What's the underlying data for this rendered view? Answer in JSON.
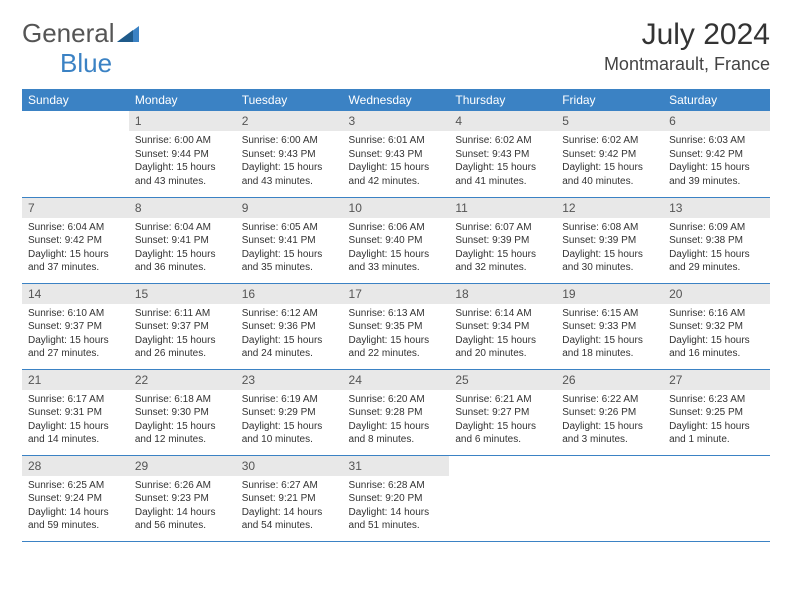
{
  "logo": {
    "part1": "General",
    "part2": "Blue"
  },
  "title": "July 2024",
  "location": "Montmarault, France",
  "colors": {
    "header_bg": "#3b82c4",
    "header_text": "#ffffff",
    "daynum_bg": "#e8e8e8",
    "border": "#3b82c4",
    "text": "#333333"
  },
  "weekdays": [
    "Sunday",
    "Monday",
    "Tuesday",
    "Wednesday",
    "Thursday",
    "Friday",
    "Saturday"
  ],
  "weeks": [
    [
      {
        "n": "",
        "sr": "",
        "ss": "",
        "dl": ""
      },
      {
        "n": "1",
        "sr": "Sunrise: 6:00 AM",
        "ss": "Sunset: 9:44 PM",
        "dl": "Daylight: 15 hours and 43 minutes."
      },
      {
        "n": "2",
        "sr": "Sunrise: 6:00 AM",
        "ss": "Sunset: 9:43 PM",
        "dl": "Daylight: 15 hours and 43 minutes."
      },
      {
        "n": "3",
        "sr": "Sunrise: 6:01 AM",
        "ss": "Sunset: 9:43 PM",
        "dl": "Daylight: 15 hours and 42 minutes."
      },
      {
        "n": "4",
        "sr": "Sunrise: 6:02 AM",
        "ss": "Sunset: 9:43 PM",
        "dl": "Daylight: 15 hours and 41 minutes."
      },
      {
        "n": "5",
        "sr": "Sunrise: 6:02 AM",
        "ss": "Sunset: 9:42 PM",
        "dl": "Daylight: 15 hours and 40 minutes."
      },
      {
        "n": "6",
        "sr": "Sunrise: 6:03 AM",
        "ss": "Sunset: 9:42 PM",
        "dl": "Daylight: 15 hours and 39 minutes."
      }
    ],
    [
      {
        "n": "7",
        "sr": "Sunrise: 6:04 AM",
        "ss": "Sunset: 9:42 PM",
        "dl": "Daylight: 15 hours and 37 minutes."
      },
      {
        "n": "8",
        "sr": "Sunrise: 6:04 AM",
        "ss": "Sunset: 9:41 PM",
        "dl": "Daylight: 15 hours and 36 minutes."
      },
      {
        "n": "9",
        "sr": "Sunrise: 6:05 AM",
        "ss": "Sunset: 9:41 PM",
        "dl": "Daylight: 15 hours and 35 minutes."
      },
      {
        "n": "10",
        "sr": "Sunrise: 6:06 AM",
        "ss": "Sunset: 9:40 PM",
        "dl": "Daylight: 15 hours and 33 minutes."
      },
      {
        "n": "11",
        "sr": "Sunrise: 6:07 AM",
        "ss": "Sunset: 9:39 PM",
        "dl": "Daylight: 15 hours and 32 minutes."
      },
      {
        "n": "12",
        "sr": "Sunrise: 6:08 AM",
        "ss": "Sunset: 9:39 PM",
        "dl": "Daylight: 15 hours and 30 minutes."
      },
      {
        "n": "13",
        "sr": "Sunrise: 6:09 AM",
        "ss": "Sunset: 9:38 PM",
        "dl": "Daylight: 15 hours and 29 minutes."
      }
    ],
    [
      {
        "n": "14",
        "sr": "Sunrise: 6:10 AM",
        "ss": "Sunset: 9:37 PM",
        "dl": "Daylight: 15 hours and 27 minutes."
      },
      {
        "n": "15",
        "sr": "Sunrise: 6:11 AM",
        "ss": "Sunset: 9:37 PM",
        "dl": "Daylight: 15 hours and 26 minutes."
      },
      {
        "n": "16",
        "sr": "Sunrise: 6:12 AM",
        "ss": "Sunset: 9:36 PM",
        "dl": "Daylight: 15 hours and 24 minutes."
      },
      {
        "n": "17",
        "sr": "Sunrise: 6:13 AM",
        "ss": "Sunset: 9:35 PM",
        "dl": "Daylight: 15 hours and 22 minutes."
      },
      {
        "n": "18",
        "sr": "Sunrise: 6:14 AM",
        "ss": "Sunset: 9:34 PM",
        "dl": "Daylight: 15 hours and 20 minutes."
      },
      {
        "n": "19",
        "sr": "Sunrise: 6:15 AM",
        "ss": "Sunset: 9:33 PM",
        "dl": "Daylight: 15 hours and 18 minutes."
      },
      {
        "n": "20",
        "sr": "Sunrise: 6:16 AM",
        "ss": "Sunset: 9:32 PM",
        "dl": "Daylight: 15 hours and 16 minutes."
      }
    ],
    [
      {
        "n": "21",
        "sr": "Sunrise: 6:17 AM",
        "ss": "Sunset: 9:31 PM",
        "dl": "Daylight: 15 hours and 14 minutes."
      },
      {
        "n": "22",
        "sr": "Sunrise: 6:18 AM",
        "ss": "Sunset: 9:30 PM",
        "dl": "Daylight: 15 hours and 12 minutes."
      },
      {
        "n": "23",
        "sr": "Sunrise: 6:19 AM",
        "ss": "Sunset: 9:29 PM",
        "dl": "Daylight: 15 hours and 10 minutes."
      },
      {
        "n": "24",
        "sr": "Sunrise: 6:20 AM",
        "ss": "Sunset: 9:28 PM",
        "dl": "Daylight: 15 hours and 8 minutes."
      },
      {
        "n": "25",
        "sr": "Sunrise: 6:21 AM",
        "ss": "Sunset: 9:27 PM",
        "dl": "Daylight: 15 hours and 6 minutes."
      },
      {
        "n": "26",
        "sr": "Sunrise: 6:22 AM",
        "ss": "Sunset: 9:26 PM",
        "dl": "Daylight: 15 hours and 3 minutes."
      },
      {
        "n": "27",
        "sr": "Sunrise: 6:23 AM",
        "ss": "Sunset: 9:25 PM",
        "dl": "Daylight: 15 hours and 1 minute."
      }
    ],
    [
      {
        "n": "28",
        "sr": "Sunrise: 6:25 AM",
        "ss": "Sunset: 9:24 PM",
        "dl": "Daylight: 14 hours and 59 minutes."
      },
      {
        "n": "29",
        "sr": "Sunrise: 6:26 AM",
        "ss": "Sunset: 9:23 PM",
        "dl": "Daylight: 14 hours and 56 minutes."
      },
      {
        "n": "30",
        "sr": "Sunrise: 6:27 AM",
        "ss": "Sunset: 9:21 PM",
        "dl": "Daylight: 14 hours and 54 minutes."
      },
      {
        "n": "31",
        "sr": "Sunrise: 6:28 AM",
        "ss": "Sunset: 9:20 PM",
        "dl": "Daylight: 14 hours and 51 minutes."
      },
      {
        "n": "",
        "sr": "",
        "ss": "",
        "dl": ""
      },
      {
        "n": "",
        "sr": "",
        "ss": "",
        "dl": ""
      },
      {
        "n": "",
        "sr": "",
        "ss": "",
        "dl": ""
      }
    ]
  ]
}
